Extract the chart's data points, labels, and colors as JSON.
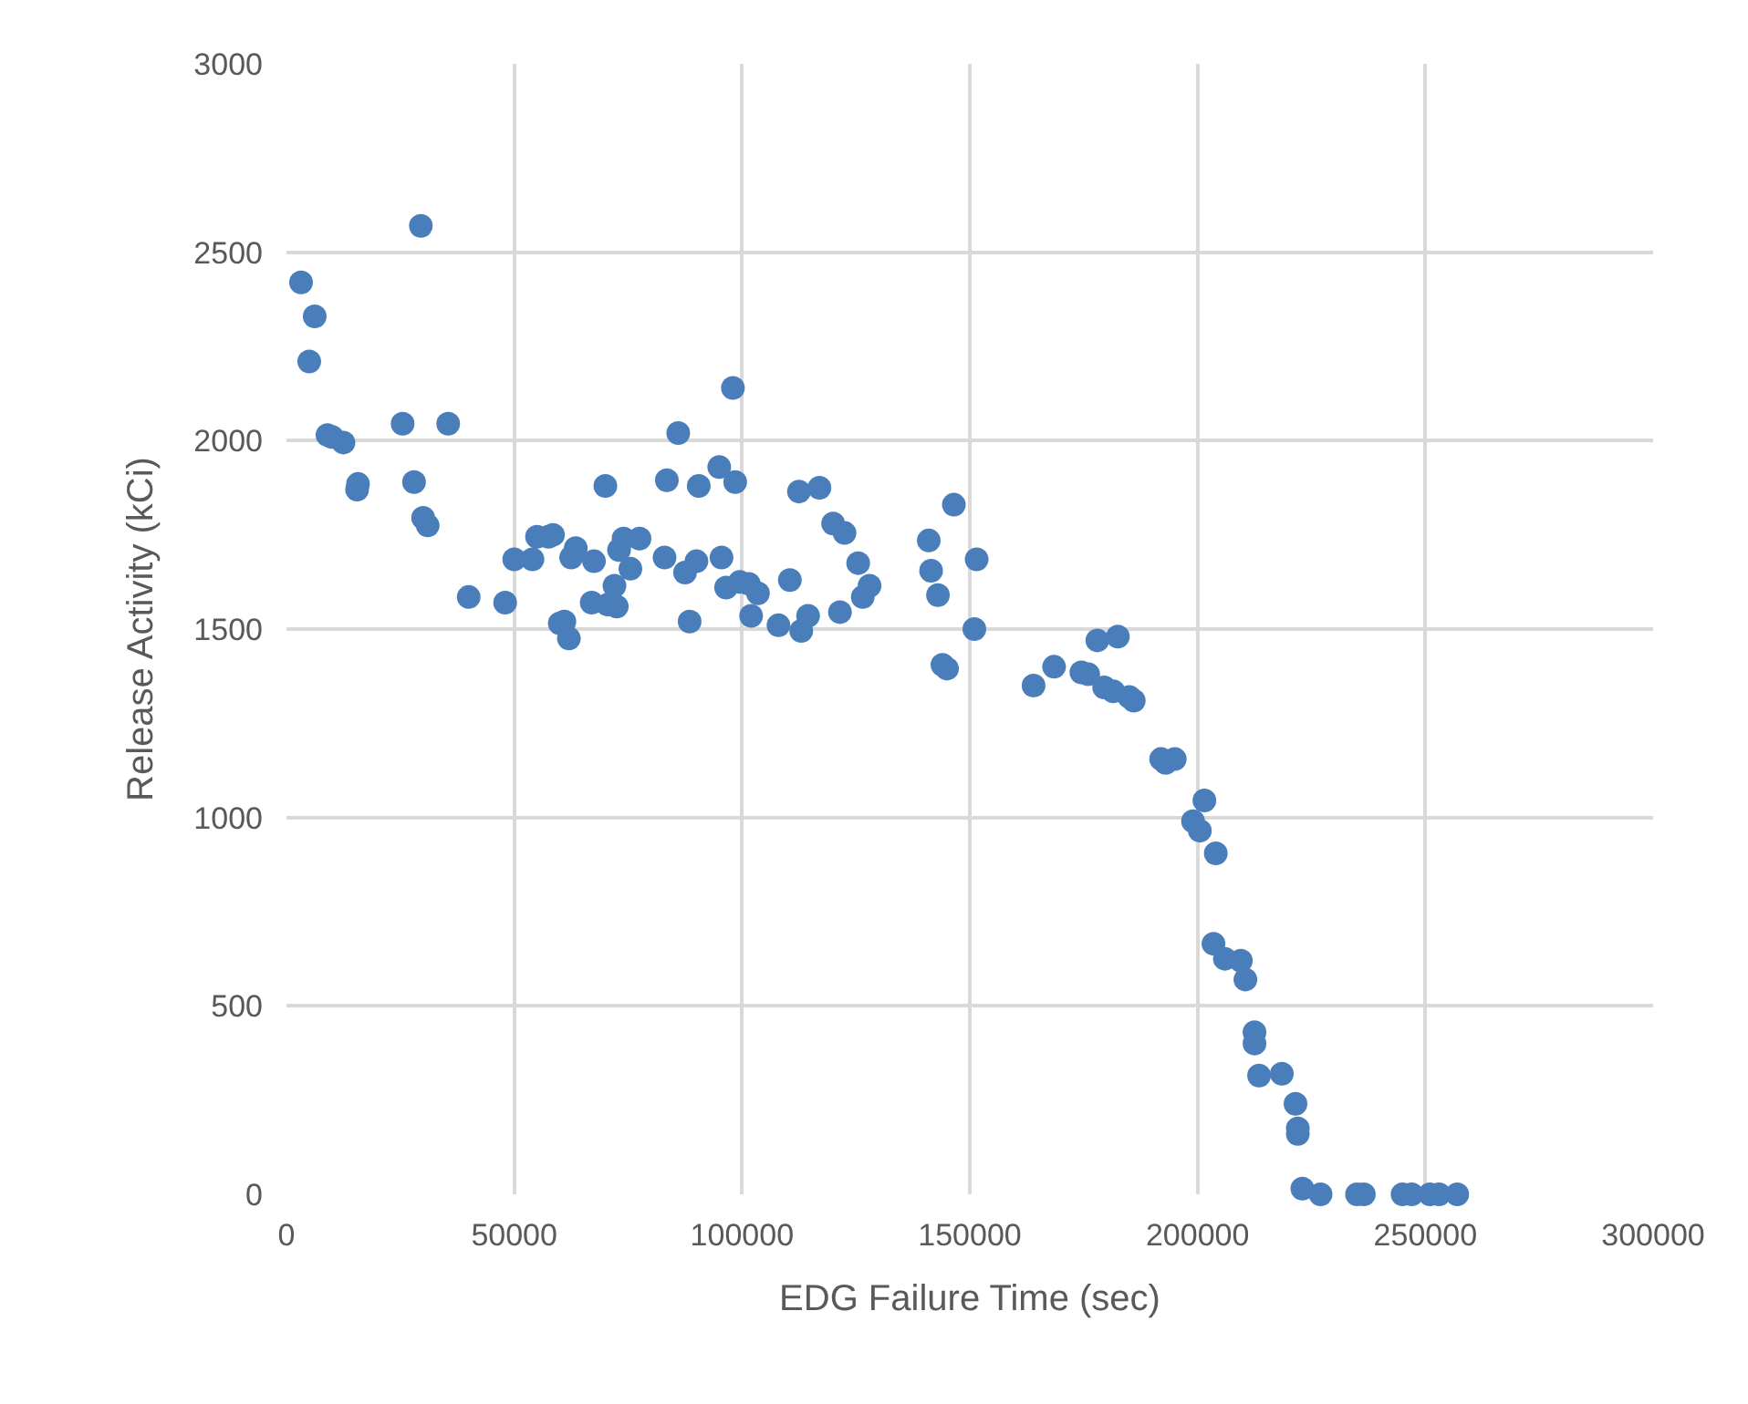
{
  "chart_data": {
    "type": "scatter",
    "xlabel": "EDG Failure Time (sec)",
    "ylabel": "Release Activity (kCi)",
    "xlim": [
      0,
      300000
    ],
    "xticks": [
      0,
      50000,
      100000,
      150000,
      200000,
      250000,
      300000
    ],
    "ylim": [
      0,
      3000
    ],
    "yticks": [
      0,
      500,
      1000,
      1500,
      2000,
      2500,
      3000
    ],
    "grid": true,
    "marker": "circle",
    "series": [
      {
        "color": "#4a7ebb",
        "x": [
          3200,
          5000,
          6200,
          9000,
          10000,
          12500,
          15500,
          15700,
          25500,
          28000,
          29500,
          30000,
          31000,
          35500,
          40000,
          48000,
          50000,
          54000,
          55000,
          57500,
          58500,
          60000,
          61000,
          62000,
          62500,
          63500,
          67000,
          67500,
          70000,
          70500,
          72000,
          72500,
          73000,
          74000,
          75500,
          77500,
          83000,
          83500,
          86000,
          87500,
          88500,
          90000,
          90500,
          95000,
          95500,
          96500,
          98000,
          98500,
          99500,
          101500,
          102000,
          103500,
          108000,
          110500,
          112500,
          113000,
          114500,
          117000,
          120000,
          122500,
          121500,
          125500,
          126500,
          128000,
          141000,
          141500,
          143000,
          144000,
          145000,
          146500,
          151000,
          151500,
          164000,
          168500,
          174500,
          176000,
          178000,
          179500,
          181500,
          182500,
          185000,
          186000,
          192000,
          193000,
          195000,
          199000,
          200500,
          201500,
          204000,
          203500,
          206000,
          209500,
          210500,
          212500,
          212500,
          213500,
          218500,
          221500,
          222000,
          222000,
          223000,
          227000,
          235000,
          236500,
          245000,
          247000,
          251000,
          253000,
          257000
        ],
        "values": [
          2420,
          2210,
          2330,
          2015,
          2010,
          1995,
          1870,
          1885,
          2045,
          1890,
          2570,
          1795,
          1775,
          2045,
          1585,
          1570,
          1685,
          1685,
          1745,
          1745,
          1750,
          1515,
          1520,
          1475,
          1690,
          1715,
          1570,
          1680,
          1880,
          1565,
          1615,
          1560,
          1710,
          1740,
          1660,
          1740,
          1690,
          1895,
          2020,
          1650,
          1520,
          1680,
          1880,
          1930,
          1690,
          1610,
          2140,
          1890,
          1625,
          1620,
          1535,
          1595,
          1510,
          1630,
          1865,
          1495,
          1535,
          1875,
          1780,
          1755,
          1545,
          1675,
          1585,
          1615,
          1735,
          1655,
          1590,
          1405,
          1395,
          1830,
          1500,
          1685,
          1350,
          1400,
          1385,
          1380,
          1470,
          1345,
          1335,
          1480,
          1320,
          1310,
          1155,
          1145,
          1155,
          990,
          965,
          1045,
          905,
          665,
          625,
          620,
          570,
          430,
          400,
          315,
          320,
          240,
          175,
          160,
          15,
          0,
          0,
          0,
          0,
          0,
          0,
          0,
          0
        ]
      }
    ]
  }
}
